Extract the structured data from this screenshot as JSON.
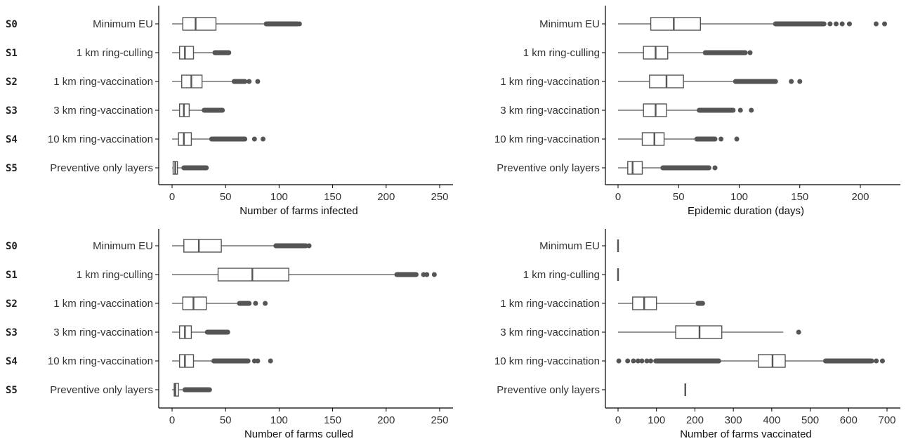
{
  "chart_data": [
    {
      "type": "boxplot",
      "xlabel": "Number of farms infected",
      "xlim": [
        0,
        260
      ],
      "xticks": [
        0,
        50,
        100,
        150,
        200,
        250
      ],
      "categories": [
        {
          "code": "S0",
          "label": "Minimum EU",
          "whisker_low": 0,
          "q1": 10,
          "median": 22,
          "q3": 41,
          "whisker_high": 87,
          "outliers": [
            {
              "start": 88,
              "end": 117
            },
            {
              "value": 119
            }
          ]
        },
        {
          "code": "S1",
          "label": "1 km ring-culling",
          "whisker_low": 0,
          "q1": 7,
          "median": 12,
          "q3": 20,
          "whisker_high": 39,
          "outliers": [
            {
              "start": 40,
              "end": 53
            }
          ]
        },
        {
          "code": "S2",
          "label": "1 km ring-vaccination",
          "whisker_low": 0,
          "q1": 9,
          "median": 18,
          "q3": 28,
          "whisker_high": 57,
          "outliers": [
            {
              "start": 58,
              "end": 68
            },
            {
              "value": 72
            },
            {
              "value": 80
            }
          ]
        },
        {
          "code": "S3",
          "label": "3 km ring-vaccination",
          "whisker_low": 0,
          "q1": 7,
          "median": 11,
          "q3": 16,
          "whisker_high": 29,
          "outliers": [
            {
              "start": 30,
              "end": 47
            }
          ]
        },
        {
          "code": "S4",
          "label": "10 km ring-vaccination",
          "whisker_low": 0,
          "q1": 6,
          "median": 11,
          "q3": 18,
          "whisker_high": 36,
          "outliers": [
            {
              "start": 37,
              "end": 68
            },
            {
              "value": 77
            },
            {
              "value": 85
            }
          ]
        },
        {
          "code": "S5",
          "label": "Preventive only layers",
          "whisker_low": 0,
          "q1": 1,
          "median": 3,
          "q3": 5,
          "whisker_high": 10,
          "outliers": [
            {
              "start": 11,
              "end": 32
            }
          ]
        }
      ]
    },
    {
      "type": "boxplot",
      "xlabel": "Epidemic duration (days)",
      "xlim": [
        0,
        225
      ],
      "xticks": [
        0,
        50,
        100,
        150,
        200
      ],
      "categories": [
        {
          "code": "",
          "label": "Minimum EU",
          "whisker_low": 0,
          "q1": 27,
          "median": 46,
          "q3": 68,
          "whisker_high": 129,
          "outliers": [
            {
              "start": 130,
              "end": 170
            },
            {
              "value": 175
            },
            {
              "value": 180
            },
            {
              "value": 185
            },
            {
              "value": 191
            },
            {
              "value": 213
            },
            {
              "value": 220
            }
          ]
        },
        {
          "code": "",
          "label": "1 km ring-culling",
          "whisker_low": 0,
          "q1": 21,
          "median": 31,
          "q3": 41,
          "whisker_high": 71,
          "outliers": [
            {
              "start": 72,
              "end": 105
            },
            {
              "value": 109
            }
          ]
        },
        {
          "code": "",
          "label": "1 km ring-vaccination",
          "whisker_low": 0,
          "q1": 26,
          "median": 40,
          "q3": 54,
          "whisker_high": 96,
          "outliers": [
            {
              "start": 97,
              "end": 130
            },
            {
              "value": 143
            },
            {
              "value": 150
            }
          ]
        },
        {
          "code": "",
          "label": "3 km ring-vaccination",
          "whisker_low": 0,
          "q1": 21,
          "median": 31,
          "q3": 40,
          "whisker_high": 66,
          "outliers": [
            {
              "start": 67,
              "end": 95
            },
            {
              "value": 101
            },
            {
              "value": 110
            }
          ]
        },
        {
          "code": "",
          "label": "10 km ring-vaccination",
          "whisker_low": 0,
          "q1": 20,
          "median": 30,
          "q3": 38,
          "whisker_high": 64,
          "outliers": [
            {
              "start": 65,
              "end": 80
            },
            {
              "value": 85
            },
            {
              "value": 98
            }
          ]
        },
        {
          "code": "",
          "label": "Preventive only layers",
          "whisker_low": 0,
          "q1": 8,
          "median": 12,
          "q3": 20,
          "whisker_high": 36,
          "outliers": [
            {
              "start": 37,
              "end": 75
            },
            {
              "value": 80
            }
          ]
        }
      ]
    },
    {
      "type": "boxplot",
      "xlabel": "Number of farms culled",
      "xlim": [
        0,
        260
      ],
      "xticks": [
        0,
        50,
        100,
        150,
        200,
        250
      ],
      "categories": [
        {
          "code": "S0",
          "label": "Minimum EU",
          "whisker_low": 0,
          "q1": 11,
          "median": 25,
          "q3": 46,
          "whisker_high": 96,
          "outliers": [
            {
              "start": 97,
              "end": 125
            },
            {
              "value": 128
            }
          ]
        },
        {
          "code": "S1",
          "label": "1 km ring-culling",
          "whisker_low": 0,
          "q1": 43,
          "median": 75,
          "q3": 109,
          "whisker_high": 209,
          "outliers": [
            {
              "start": 210,
              "end": 228
            },
            {
              "value": 235
            },
            {
              "value": 238
            },
            {
              "value": 245
            }
          ]
        },
        {
          "code": "S2",
          "label": "1 km ring-vaccination",
          "whisker_low": 0,
          "q1": 10,
          "median": 20,
          "q3": 32,
          "whisker_high": 62,
          "outliers": [
            {
              "start": 63,
              "end": 72
            },
            {
              "value": 78
            },
            {
              "value": 87
            }
          ]
        },
        {
          "code": "S3",
          "label": "3 km ring-vaccination",
          "whisker_low": 0,
          "q1": 7,
          "median": 12,
          "q3": 18,
          "whisker_high": 32,
          "outliers": [
            {
              "start": 33,
              "end": 52
            }
          ]
        },
        {
          "code": "S4",
          "label": "10 km ring-vaccination",
          "whisker_low": 0,
          "q1": 7,
          "median": 12,
          "q3": 20,
          "whisker_high": 38,
          "outliers": [
            {
              "start": 39,
              "end": 71
            },
            {
              "value": 77
            },
            {
              "value": 80
            },
            {
              "value": 92
            }
          ]
        },
        {
          "code": "S5",
          "label": "Preventive only layers",
          "whisker_low": 0,
          "q1": 2,
          "median": 3,
          "q3": 6,
          "whisker_high": 11,
          "outliers": [
            {
              "start": 12,
              "end": 35
            }
          ]
        }
      ]
    },
    {
      "type": "boxplot",
      "xlabel": "Number of farms vaccinated",
      "xlim": [
        0,
        720
      ],
      "xticks": [
        0,
        100,
        200,
        300,
        400,
        500,
        600,
        700
      ],
      "categories": [
        {
          "code": "",
          "label": "Minimum EU",
          "whisker_low": 0,
          "q1": 0,
          "median": 0,
          "q3": 0,
          "whisker_high": 0,
          "outliers": []
        },
        {
          "code": "",
          "label": "1 km ring-culling",
          "whisker_low": 0,
          "q1": 0,
          "median": 0,
          "q3": 0,
          "whisker_high": 0,
          "outliers": []
        },
        {
          "code": "",
          "label": "1 km ring-vaccination",
          "whisker_low": 0,
          "q1": 38,
          "median": 68,
          "q3": 100,
          "whisker_high": 200,
          "outliers": [
            {
              "start": 208,
              "end": 220
            }
          ]
        },
        {
          "code": "",
          "label": "3 km ring-vaccination",
          "whisker_low": 0,
          "q1": 150,
          "median": 212,
          "q3": 270,
          "whisker_high": 430,
          "outliers": [
            {
              "value": 470
            }
          ]
        },
        {
          "code": "",
          "label": "10 km ring-vaccination",
          "whisker_low": 262,
          "q1": 365,
          "median": 402,
          "q3": 435,
          "whisker_high": 540,
          "outliers": [
            {
              "value": 2
            },
            {
              "value": 25
            },
            {
              "value": 40
            },
            {
              "value": 52
            },
            {
              "value": 62
            },
            {
              "value": 75
            },
            {
              "value": 85
            },
            {
              "start": 98,
              "end": 262
            },
            {
              "start": 540,
              "end": 660
            },
            {
              "value": 672
            },
            {
              "value": 688
            }
          ]
        },
        {
          "code": "",
          "label": "Preventive only layers",
          "whisker_low": 175,
          "q1": 175,
          "median": 175,
          "q3": 175,
          "whisker_high": 175,
          "outliers": []
        }
      ]
    }
  ]
}
